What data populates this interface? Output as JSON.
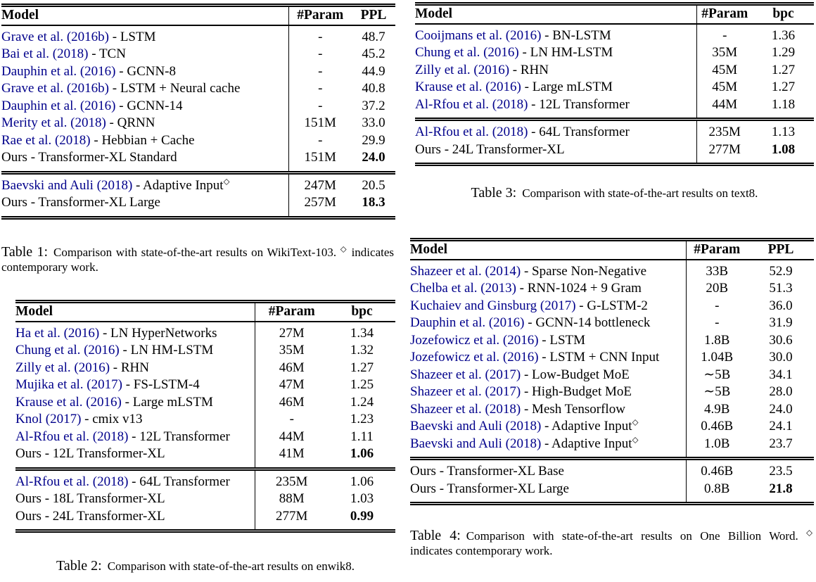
{
  "page": {
    "colors": {
      "background": "#ffffff",
      "text": "#000000",
      "citation_link": "#00008B",
      "rule": "#000000"
    }
  },
  "tables": [
    {
      "name": "wikitext103-results",
      "columns": {
        "model": "Model",
        "param": "#Param",
        "metric": "PPL"
      },
      "sections": [
        {
          "rows": [
            {
              "model": [
                {
                  "t": "Grave et al. (2016b)",
                  "cite": true
                },
                {
                  "t": " - LSTM"
                }
              ],
              "param": "-",
              "value": "48.7"
            },
            {
              "model": [
                {
                  "t": "Bai et al. (2018)",
                  "cite": true
                },
                {
                  "t": " - TCN"
                }
              ],
              "param": "-",
              "value": "45.2"
            },
            {
              "model": [
                {
                  "t": "Dauphin et al. (2016)",
                  "cite": true
                },
                {
                  "t": " - GCNN-8"
                }
              ],
              "param": "-",
              "value": "44.9"
            },
            {
              "model": [
                {
                  "t": "Grave et al. (2016b)",
                  "cite": true
                },
                {
                  "t": " - LSTM + Neural cache"
                }
              ],
              "param": "-",
              "value": "40.8"
            },
            {
              "model": [
                {
                  "t": "Dauphin et al. (2016)",
                  "cite": true
                },
                {
                  "t": " - GCNN-14"
                }
              ],
              "param": "-",
              "value": "37.2"
            },
            {
              "model": [
                {
                  "t": "Merity et al. (2018)",
                  "cite": true
                },
                {
                  "t": " - QRNN"
                }
              ],
              "param": "151M",
              "value": "33.0"
            },
            {
              "model": [
                {
                  "t": "Rae et al. (2018)",
                  "cite": true
                },
                {
                  "t": " - Hebbian + Cache"
                }
              ],
              "param": "-",
              "value": "29.9"
            },
            {
              "model": [
                {
                  "t": "Ours - Transformer-XL Standard"
                }
              ],
              "param": "151M",
              "value": "24.0",
              "bold": true
            }
          ]
        },
        {
          "rows": [
            {
              "model": [
                {
                  "t": "Baevski and Auli (2018)",
                  "cite": true
                },
                {
                  "t": " - Adaptive Input"
                },
                {
                  "t": "◇",
                  "sup": true
                }
              ],
              "param": "247M",
              "value": "20.5"
            },
            {
              "model": [
                {
                  "t": "Ours - Transformer-XL Large"
                }
              ],
              "param": "257M",
              "value": "18.3",
              "bold": true
            }
          ]
        }
      ],
      "caption": {
        "label": "Table 1:",
        "parts": [
          {
            "t": "Comparison with state-of-the-art results on WikiText-103. "
          },
          {
            "t": "◇",
            "sup": true
          },
          {
            "t": " indicates contemporary work."
          }
        ]
      }
    },
    {
      "name": "enwik8-results",
      "columns": {
        "model": "Model",
        "param": "#Param",
        "metric": "bpc"
      },
      "sections": [
        {
          "rows": [
            {
              "model": [
                {
                  "t": "Ha et al. (2016)",
                  "cite": true
                },
                {
                  "t": " - LN HyperNetworks"
                }
              ],
              "param": "27M",
              "value": "1.34"
            },
            {
              "model": [
                {
                  "t": "Chung et al. (2016)",
                  "cite": true
                },
                {
                  "t": " - LN HM-LSTM"
                }
              ],
              "param": "35M",
              "value": "1.32"
            },
            {
              "model": [
                {
                  "t": "Zilly et al. (2016)",
                  "cite": true
                },
                {
                  "t": " - RHN"
                }
              ],
              "param": "46M",
              "value": "1.27"
            },
            {
              "model": [
                {
                  "t": "Mujika et al. (2017)",
                  "cite": true
                },
                {
                  "t": " - FS-LSTM-4"
                }
              ],
              "param": "47M",
              "value": "1.25"
            },
            {
              "model": [
                {
                  "t": "Krause et al. (2016)",
                  "cite": true
                },
                {
                  "t": " - Large mLSTM"
                }
              ],
              "param": "46M",
              "value": "1.24"
            },
            {
              "model": [
                {
                  "t": "Knol (2017)",
                  "cite": true
                },
                {
                  "t": " - cmix v13"
                }
              ],
              "param": "-",
              "value": "1.23"
            },
            {
              "model": [
                {
                  "t": "Al-Rfou et al. (2018)",
                  "cite": true
                },
                {
                  "t": " - 12L Transformer"
                }
              ],
              "param": "44M",
              "value": "1.11"
            },
            {
              "model": [
                {
                  "t": "Ours - 12L Transformer-XL"
                }
              ],
              "param": "41M",
              "value": "1.06",
              "bold": true
            }
          ]
        },
        {
          "rows": [
            {
              "model": [
                {
                  "t": "Al-Rfou et al. (2018)",
                  "cite": true
                },
                {
                  "t": " - 64L Transformer"
                }
              ],
              "param": "235M",
              "value": "1.06"
            },
            {
              "model": [
                {
                  "t": "Ours - 18L Transformer-XL"
                }
              ],
              "param": "88M",
              "value": "1.03"
            },
            {
              "model": [
                {
                  "t": "Ours - 24L Transformer-XL"
                }
              ],
              "param": "277M",
              "value": "0.99",
              "bold": true
            }
          ]
        }
      ],
      "caption": {
        "label": "Table 2:",
        "parts": [
          {
            "t": "Comparison with state-of-the-art results on enwik8."
          }
        ]
      }
    },
    {
      "name": "text8-results",
      "columns": {
        "model": "Model",
        "param": "#Param",
        "metric": "bpc"
      },
      "sections": [
        {
          "rows": [
            {
              "model": [
                {
                  "t": "Cooijmans et al. (2016)",
                  "cite": true
                },
                {
                  "t": " - BN-LSTM"
                }
              ],
              "param": "-",
              "value": "1.36"
            },
            {
              "model": [
                {
                  "t": "Chung et al. (2016)",
                  "cite": true
                },
                {
                  "t": " - LN HM-LSTM"
                }
              ],
              "param": "35M",
              "value": "1.29"
            },
            {
              "model": [
                {
                  "t": "Zilly et al. (2016)",
                  "cite": true
                },
                {
                  "t": " - RHN"
                }
              ],
              "param": "45M",
              "value": "1.27"
            },
            {
              "model": [
                {
                  "t": "Krause et al. (2016)",
                  "cite": true
                },
                {
                  "t": " - Large mLSTM"
                }
              ],
              "param": "45M",
              "value": "1.27"
            },
            {
              "model": [
                {
                  "t": "Al-Rfou et al. (2018)",
                  "cite": true
                },
                {
                  "t": " - 12L Transformer"
                }
              ],
              "param": "44M",
              "value": "1.18"
            }
          ]
        },
        {
          "rows": [
            {
              "model": [
                {
                  "t": "Al-Rfou et al. (2018)",
                  "cite": true
                },
                {
                  "t": " - 64L Transformer"
                }
              ],
              "param": "235M",
              "value": "1.13"
            },
            {
              "model": [
                {
                  "t": "Ours - 24L Transformer-XL"
                }
              ],
              "param": "277M",
              "value": "1.08",
              "bold": true
            }
          ]
        }
      ],
      "caption": {
        "label": "Table 3:",
        "parts": [
          {
            "t": "Comparison with state-of-the-art results on text8."
          }
        ]
      }
    },
    {
      "name": "one-billion-word-results",
      "columns": {
        "model": "Model",
        "param": "#Param",
        "metric": "PPL"
      },
      "sections": [
        {
          "rows": [
            {
              "model": [
                {
                  "t": "Shazeer et al. (2014)",
                  "cite": true
                },
                {
                  "t": " - Sparse Non-Negative"
                }
              ],
              "param": "33B",
              "value": "52.9"
            },
            {
              "model": [
                {
                  "t": "Chelba et al. (2013)",
                  "cite": true
                },
                {
                  "t": " - RNN-1024 + 9 Gram"
                }
              ],
              "param": "20B",
              "value": "51.3"
            },
            {
              "model": [
                {
                  "t": "Kuchaiev and Ginsburg (2017)",
                  "cite": true
                },
                {
                  "t": " - G-LSTM-2"
                }
              ],
              "param": "-",
              "value": "36.0"
            },
            {
              "model": [
                {
                  "t": "Dauphin et al. (2016)",
                  "cite": true
                },
                {
                  "t": " - GCNN-14 bottleneck"
                }
              ],
              "param": "-",
              "value": "31.9"
            },
            {
              "model": [
                {
                  "t": "Jozefowicz et al. (2016)",
                  "cite": true
                },
                {
                  "t": " - LSTM"
                }
              ],
              "param": "1.8B",
              "value": "30.6"
            },
            {
              "model": [
                {
                  "t": "Jozefowicz et al. (2016)",
                  "cite": true
                },
                {
                  "t": " - LSTM + CNN Input"
                }
              ],
              "param": "1.04B",
              "value": "30.0"
            },
            {
              "model": [
                {
                  "t": "Shazeer et al. (2017)",
                  "cite": true
                },
                {
                  "t": " - Low-Budget MoE"
                }
              ],
              "param": "∼5B",
              "value": "34.1"
            },
            {
              "model": [
                {
                  "t": "Shazeer et al. (2017)",
                  "cite": true
                },
                {
                  "t": " - High-Budget MoE"
                }
              ],
              "param": "∼5B",
              "value": "28.0"
            },
            {
              "model": [
                {
                  "t": "Shazeer et al. (2018)",
                  "cite": true
                },
                {
                  "t": " - Mesh Tensorflow"
                }
              ],
              "param": "4.9B",
              "value": "24.0"
            },
            {
              "model": [
                {
                  "t": "Baevski and Auli (2018)",
                  "cite": true
                },
                {
                  "t": " - Adaptive Input"
                },
                {
                  "t": "◇",
                  "sup": true
                }
              ],
              "param": "0.46B",
              "value": "24.1"
            },
            {
              "model": [
                {
                  "t": "Baevski and Auli (2018)",
                  "cite": true
                },
                {
                  "t": " - Adaptive Input"
                },
                {
                  "t": "◇",
                  "sup": true
                }
              ],
              "param": "1.0B",
              "value": "23.7"
            }
          ]
        },
        {
          "rows": [
            {
              "model": [
                {
                  "t": "Ours - Transformer-XL Base"
                }
              ],
              "param": "0.46B",
              "value": "23.5"
            },
            {
              "model": [
                {
                  "t": "Ours - Transformer-XL Large"
                }
              ],
              "param": "0.8B",
              "value": "21.8",
              "bold": true
            }
          ]
        }
      ],
      "caption": {
        "label": "Table 4:",
        "parts": [
          {
            "t": "Comparison with state-of-the-art results on One Billion Word. "
          },
          {
            "t": "◇",
            "sup": true
          },
          {
            "t": " indicates contemporary work."
          }
        ]
      }
    }
  ]
}
